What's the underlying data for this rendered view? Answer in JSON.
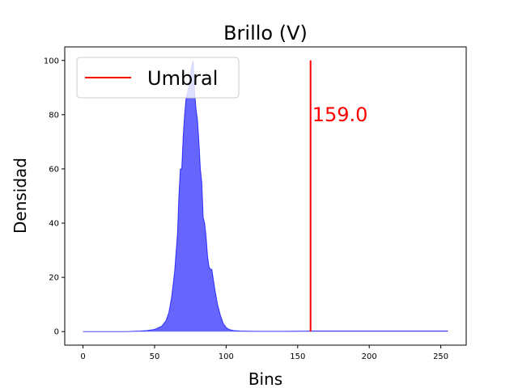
{
  "chart_data": {
    "type": "area",
    "title": "Brillo (V)",
    "xlabel": "Bins",
    "ylabel": "Densidad",
    "xlim": [
      -12.75,
      267.75
    ],
    "ylim": [
      -5,
      105
    ],
    "xticks": [
      0,
      50,
      100,
      150,
      200,
      250
    ],
    "yticks": [
      0,
      20,
      40,
      60,
      80,
      100
    ],
    "grid": false,
    "legend": {
      "placement": "top-left",
      "entries": [
        {
          "label": "Umbral",
          "color": "#ff0000"
        }
      ]
    },
    "series": [
      {
        "type": "area",
        "color": "#0000ff",
        "x": [
          0,
          10,
          20,
          30,
          40,
          45,
          50,
          55,
          58,
          60,
          62,
          64,
          66,
          67,
          68,
          69,
          70,
          71,
          72,
          73,
          74,
          75,
          76,
          77,
          78,
          79,
          80,
          81,
          82,
          83,
          84,
          85,
          86,
          87,
          88,
          89,
          90,
          92,
          94,
          96,
          98,
          100,
          102,
          105,
          110,
          120,
          140,
          159,
          180,
          200,
          220,
          240,
          255
        ],
        "y": [
          0,
          0,
          0,
          0,
          0.2,
          0.4,
          0.8,
          2,
          4,
          7,
          13,
          22,
          36,
          50,
          60,
          60,
          72,
          80,
          86,
          88,
          90,
          95,
          98,
          100,
          88,
          82,
          78,
          70,
          60,
          55,
          42,
          40,
          35,
          28,
          24,
          23,
          23,
          16,
          10,
          6,
          3,
          1.5,
          0.8,
          0.4,
          0.2,
          0.1,
          0.1,
          0.2,
          0.2,
          0.2,
          0.2,
          0.2,
          0.2
        ]
      }
    ],
    "threshold": {
      "label": "Umbral",
      "x": 159,
      "y_range": [
        0,
        100
      ],
      "color": "#ff0000",
      "annotation": "159.0",
      "annotation_y": 80
    }
  }
}
